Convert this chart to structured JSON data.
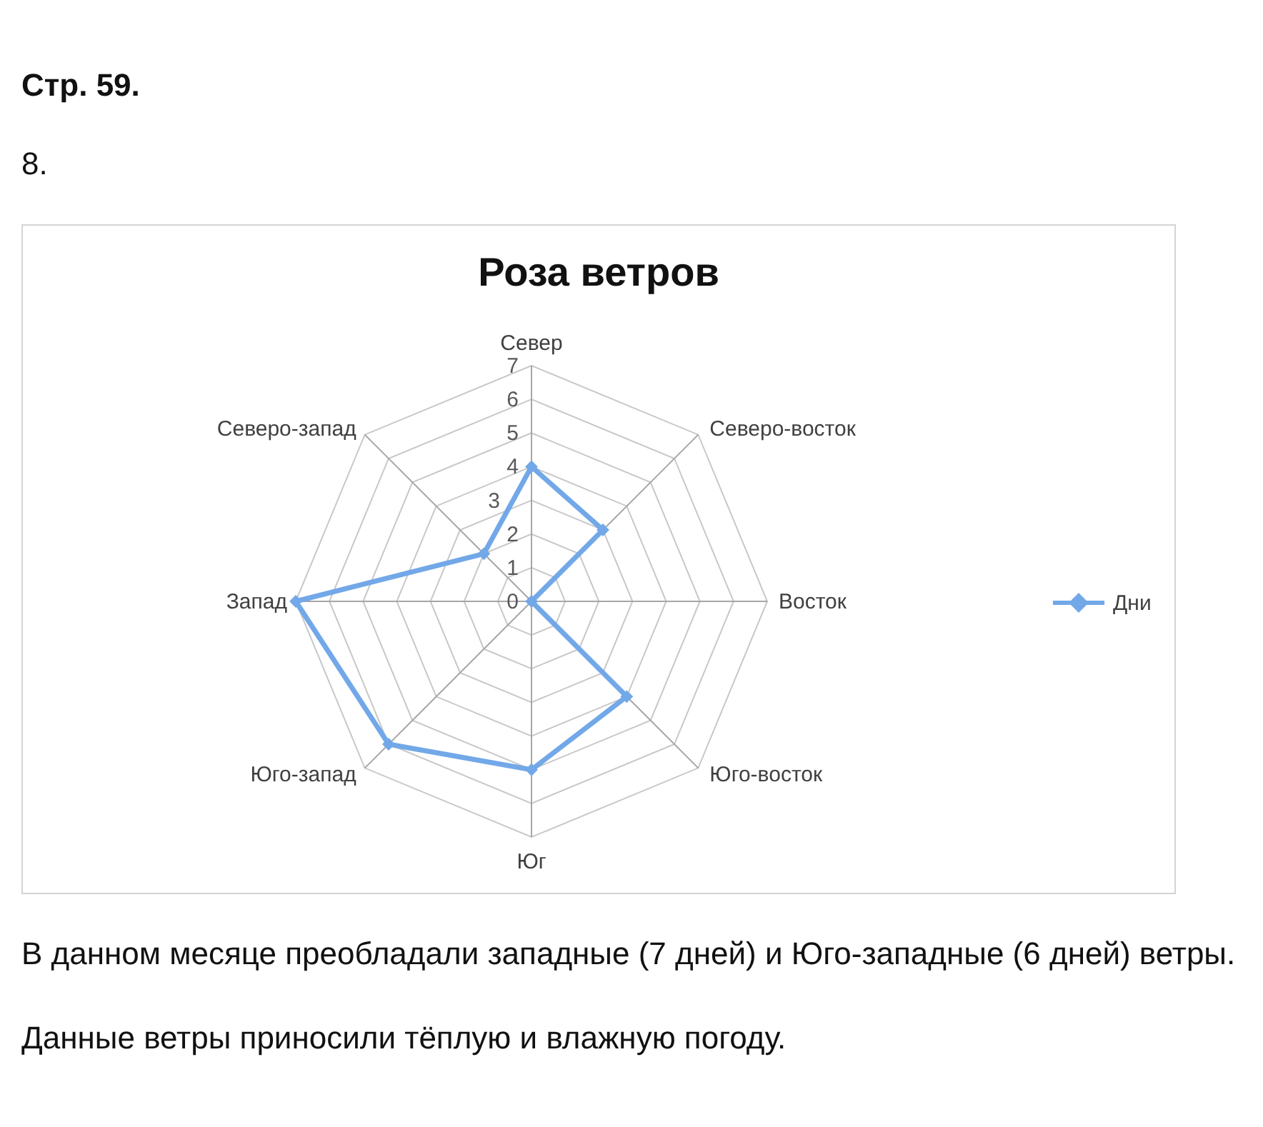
{
  "chart_data": {
    "type": "radar",
    "title": "Роза ветров",
    "categories": [
      "Север",
      "Северо-восток",
      "Восток",
      "Юго-восток",
      "Юг",
      "Юго-запад",
      "Запад",
      "Северо-запад"
    ],
    "series": [
      {
        "name": "Дни",
        "color": "#72a8e8",
        "values": [
          4,
          3,
          0,
          4,
          5,
          6,
          7,
          2
        ]
      }
    ],
    "ylim": [
      0,
      7
    ],
    "yticks": [
      0,
      1,
      2,
      3,
      4,
      5,
      6,
      7
    ],
    "grid": true,
    "legend": "right",
    "marker": "diamond",
    "line_style": "solid",
    "annotations": [
      "Стр. 59.",
      "8.",
      "В данном месяце преобладали западные (7 дней) и Юго-западные (6 дней) ветры.",
      "Данные ветры приносили тёплую и влажную погоду."
    ]
  }
}
